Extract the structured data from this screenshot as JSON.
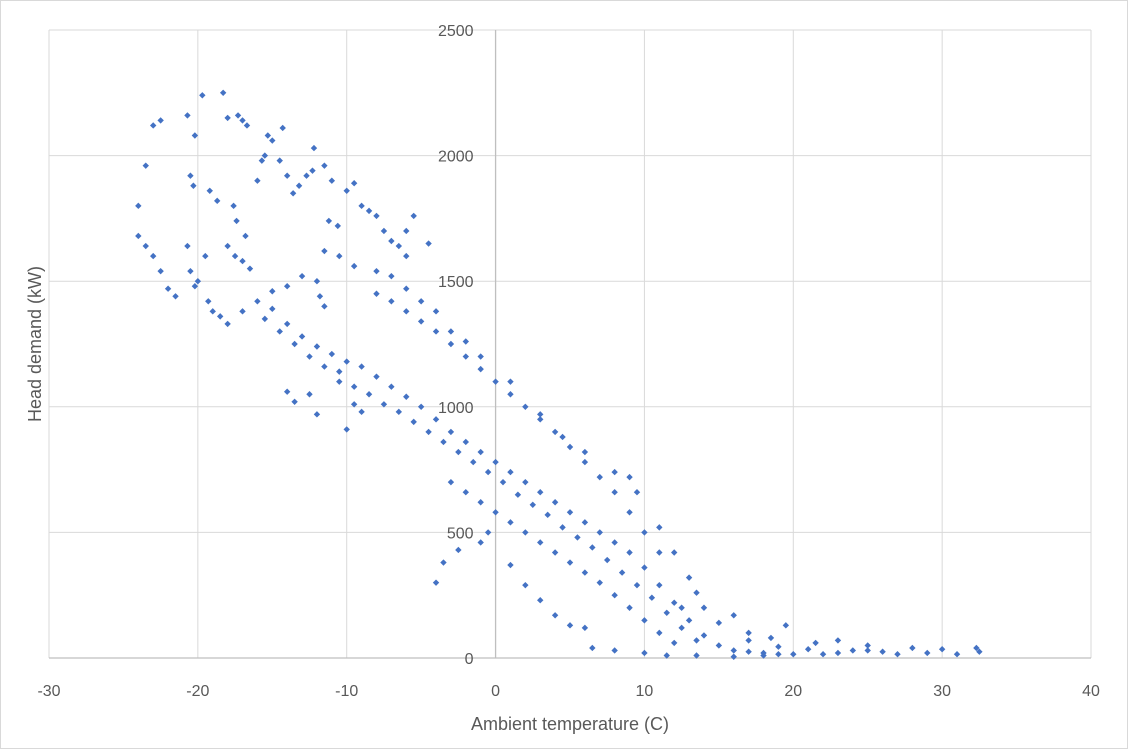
{
  "chart_data": {
    "type": "scatter",
    "title": "",
    "xlabel": "Ambient temperature (C)",
    "ylabel": "Head demand (kW)",
    "xlim": [
      -30,
      40
    ],
    "ylim": [
      0,
      2500
    ],
    "x_ticks": [
      -30,
      -20,
      -10,
      0,
      10,
      20,
      30,
      40
    ],
    "y_ticks": [
      0,
      500,
      1000,
      1500,
      2000,
      2500
    ],
    "grid": true,
    "legend": "none",
    "colors": {
      "marker": "#4472c4",
      "grid": "#d9d9d9",
      "text": "#595959"
    },
    "series": [
      {
        "marker": "diamond",
        "points": [
          [
            -24,
            1800
          ],
          [
            -23.5,
            1960
          ],
          [
            -23,
            2120
          ],
          [
            -22.5,
            2140
          ],
          [
            -24,
            1680
          ],
          [
            -23.5,
            1640
          ],
          [
            -23,
            1600
          ],
          [
            -22.5,
            1540
          ],
          [
            -22,
            1470
          ],
          [
            -21.5,
            1440
          ],
          [
            -20.7,
            2160
          ],
          [
            -20.2,
            2080
          ],
          [
            -19.7,
            2240
          ],
          [
            -18.3,
            2250
          ],
          [
            -20.5,
            1920
          ],
          [
            -20.3,
            1880
          ],
          [
            -19.2,
            1860
          ],
          [
            -18.7,
            1820
          ],
          [
            -20.7,
            1640
          ],
          [
            -20.5,
            1540
          ],
          [
            -20,
            1500
          ],
          [
            -20.2,
            1480
          ],
          [
            -19.3,
            1420
          ],
          [
            -19,
            1380
          ],
          [
            -18.5,
            1360
          ],
          [
            -19.5,
            1600
          ],
          [
            -18,
            2150
          ],
          [
            -17.3,
            2160
          ],
          [
            -17,
            2140
          ],
          [
            -16.7,
            2120
          ],
          [
            -17.6,
            1800
          ],
          [
            -17.4,
            1740
          ],
          [
            -16.8,
            1680
          ],
          [
            -18,
            1640
          ],
          [
            -17.5,
            1600
          ],
          [
            -17,
            1580
          ],
          [
            -16.5,
            1550
          ],
          [
            -16,
            1900
          ],
          [
            -15.7,
            1980
          ],
          [
            -15.5,
            2000
          ],
          [
            -15.3,
            2080
          ],
          [
            -15,
            2060
          ],
          [
            -14.5,
            1980
          ],
          [
            -14,
            1920
          ],
          [
            -14.3,
            2110
          ],
          [
            -13.6,
            1850
          ],
          [
            -13.2,
            1880
          ],
          [
            -12.7,
            1920
          ],
          [
            -12.3,
            1940
          ],
          [
            -12.2,
            2030
          ],
          [
            -11.5,
            1960
          ],
          [
            -11,
            1900
          ],
          [
            -11.2,
            1740
          ],
          [
            -10.6,
            1720
          ],
          [
            -10,
            1860
          ],
          [
            -9.5,
            1890
          ],
          [
            -9,
            1800
          ],
          [
            -8.5,
            1780
          ],
          [
            -8,
            1760
          ],
          [
            -7.5,
            1700
          ],
          [
            -7,
            1660
          ],
          [
            -6.5,
            1640
          ],
          [
            -6,
            1700
          ],
          [
            -5.5,
            1760
          ],
          [
            -4.5,
            1650
          ],
          [
            -6,
            1600
          ],
          [
            -12,
            1500
          ],
          [
            -11.8,
            1440
          ],
          [
            -11.5,
            1400
          ],
          [
            -13,
            1520
          ],
          [
            -14,
            1480
          ],
          [
            -15,
            1460
          ],
          [
            -10.5,
            1100
          ],
          [
            -9.5,
            1010
          ],
          [
            -9,
            980
          ],
          [
            -10,
            910
          ],
          [
            -12,
            970
          ],
          [
            -12.5,
            1050
          ],
          [
            -14,
            1060
          ],
          [
            -13.5,
            1020
          ],
          [
            -4,
            300
          ],
          [
            -3.5,
            380
          ],
          [
            -2.5,
            430
          ],
          [
            -1,
            460
          ],
          [
            -0.5,
            500
          ],
          [
            1,
            370
          ],
          [
            2,
            290
          ],
          [
            3,
            230
          ],
          [
            4,
            170
          ],
          [
            5,
            130
          ],
          [
            6,
            120
          ],
          [
            6.5,
            40
          ],
          [
            8,
            30
          ],
          [
            10,
            20
          ],
          [
            11.5,
            10
          ],
          [
            13.5,
            10
          ],
          [
            16,
            5
          ],
          [
            18,
            10
          ],
          [
            20,
            15
          ],
          [
            22,
            15
          ],
          [
            9.5,
            660
          ],
          [
            9,
            720
          ],
          [
            8,
            740
          ],
          [
            6,
            820
          ],
          [
            4.5,
            880
          ],
          [
            3,
            970
          ],
          [
            1,
            1100
          ],
          [
            -1,
            1200
          ],
          [
            -2,
            1260
          ],
          [
            -3,
            1300
          ],
          [
            -4,
            1380
          ],
          [
            -5,
            1420
          ],
          [
            -6,
            1470
          ],
          [
            -7,
            1520
          ],
          [
            -8,
            1540
          ],
          [
            -9.5,
            1560
          ],
          [
            -10.5,
            1600
          ],
          [
            -11.5,
            1620
          ],
          [
            24,
            30
          ],
          [
            26,
            25
          ],
          [
            28,
            40
          ],
          [
            29,
            20
          ],
          [
            30,
            35
          ],
          [
            31,
            15
          ],
          [
            32.3,
            40
          ],
          [
            32.5,
            25
          ],
          [
            27,
            15
          ],
          [
            25,
            30
          ],
          [
            23,
            20
          ],
          [
            21,
            35
          ],
          [
            19,
            45
          ],
          [
            17,
            70
          ],
          [
            15,
            140
          ],
          [
            14,
            200
          ],
          [
            13,
            320
          ],
          [
            12,
            420
          ],
          [
            11,
            520
          ],
          [
            12.5,
            200
          ],
          [
            13.5,
            260
          ],
          [
            16,
            170
          ],
          [
            17,
            100
          ],
          [
            18.5,
            80
          ],
          [
            19.5,
            130
          ],
          [
            21.5,
            60
          ],
          [
            23,
            70
          ],
          [
            25,
            50
          ],
          [
            -16,
            1420
          ],
          [
            -17,
            1380
          ],
          [
            -18,
            1330
          ],
          [
            -15,
            1390
          ],
          [
            -14,
            1330
          ],
          [
            -13,
            1280
          ],
          [
            -12,
            1240
          ],
          [
            -11,
            1210
          ],
          [
            -10,
            1180
          ],
          [
            -9,
            1160
          ],
          [
            -8,
            1120
          ],
          [
            -7,
            1080
          ],
          [
            -6,
            1040
          ],
          [
            -5,
            1000
          ],
          [
            -4,
            950
          ],
          [
            -3,
            900
          ],
          [
            -2,
            860
          ],
          [
            -1,
            820
          ],
          [
            0,
            780
          ],
          [
            1,
            740
          ],
          [
            2,
            700
          ],
          [
            3,
            660
          ],
          [
            4,
            620
          ],
          [
            5,
            580
          ],
          [
            6,
            540
          ],
          [
            7,
            500
          ],
          [
            8,
            460
          ],
          [
            9,
            420
          ],
          [
            10,
            360
          ],
          [
            11,
            290
          ],
          [
            12,
            220
          ],
          [
            13,
            150
          ],
          [
            14,
            90
          ],
          [
            15,
            50
          ],
          [
            -15.5,
            1350
          ],
          [
            -14.5,
            1300
          ],
          [
            -13.5,
            1250
          ],
          [
            -12.5,
            1200
          ],
          [
            -11.5,
            1160
          ],
          [
            -10.5,
            1140
          ],
          [
            -9.5,
            1080
          ],
          [
            -8.5,
            1050
          ],
          [
            -7.5,
            1010
          ],
          [
            -6.5,
            980
          ],
          [
            -5.5,
            940
          ],
          [
            -4.5,
            900
          ],
          [
            -3.5,
            860
          ],
          [
            -2.5,
            820
          ],
          [
            -1.5,
            780
          ],
          [
            -0.5,
            740
          ],
          [
            0.5,
            700
          ],
          [
            1.5,
            650
          ],
          [
            2.5,
            610
          ],
          [
            3.5,
            570
          ],
          [
            4.5,
            520
          ],
          [
            5.5,
            480
          ],
          [
            6.5,
            440
          ],
          [
            7.5,
            390
          ],
          [
            8.5,
            340
          ],
          [
            9.5,
            290
          ],
          [
            10.5,
            240
          ],
          [
            11.5,
            180
          ],
          [
            12.5,
            120
          ],
          [
            13.5,
            70
          ],
          [
            -8,
            1450
          ],
          [
            -7,
            1420
          ],
          [
            -6,
            1380
          ],
          [
            -5,
            1340
          ],
          [
            -4,
            1300
          ],
          [
            -3,
            1250
          ],
          [
            -2,
            1200
          ],
          [
            -1,
            1150
          ],
          [
            0,
            1100
          ],
          [
            1,
            1050
          ],
          [
            2,
            1000
          ],
          [
            3,
            950
          ],
          [
            4,
            900
          ],
          [
            5,
            840
          ],
          [
            6,
            780
          ],
          [
            7,
            720
          ],
          [
            8,
            660
          ],
          [
            9,
            580
          ],
          [
            10,
            500
          ],
          [
            11,
            420
          ],
          [
            -3,
            700
          ],
          [
            -2,
            660
          ],
          [
            -1,
            620
          ],
          [
            0,
            580
          ],
          [
            1,
            540
          ],
          [
            2,
            500
          ],
          [
            3,
            460
          ],
          [
            4,
            420
          ],
          [
            5,
            380
          ],
          [
            6,
            340
          ],
          [
            7,
            300
          ],
          [
            8,
            250
          ],
          [
            9,
            200
          ],
          [
            10,
            150
          ],
          [
            11,
            100
          ],
          [
            12,
            60
          ],
          [
            16,
            30
          ],
          [
            17,
            25
          ],
          [
            18,
            20
          ],
          [
            19,
            15
          ]
        ]
      }
    ]
  }
}
